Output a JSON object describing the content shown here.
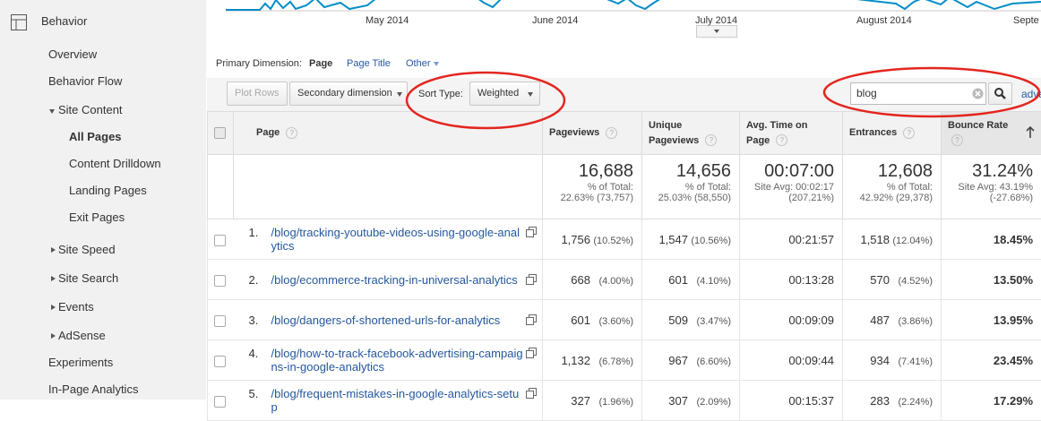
{
  "nav": {
    "section": "Behavior",
    "items": [
      "Overview",
      "Behavior Flow",
      "Site Content",
      "All Pages",
      "Content Drilldown",
      "Landing Pages",
      "Exit Pages",
      "Site Speed",
      "Site Search",
      "Events",
      "AdSense",
      "Experiments",
      "In-Page Analytics"
    ]
  },
  "timeline": {
    "labels": [
      "May 2014",
      "June 2014",
      "July 2014",
      "August 2014",
      "Septe"
    ]
  },
  "dimension": {
    "label": "Primary Dimension:",
    "options": [
      "Page",
      "Page Title",
      "Other"
    ]
  },
  "toolbar": {
    "plot_rows": "Plot Rows",
    "secondary": "Secondary dimension",
    "sort_label": "Sort Type:",
    "sort_value": "Weighted",
    "search": "blog",
    "advanced": "adva"
  },
  "table": {
    "columns": [
      "Page",
      "Pageviews",
      "Unique Pageviews",
      "Avg. Time on Page",
      "Entrances",
      "Bounce Rate"
    ],
    "help": "?",
    "totals": [
      {
        "main": "16,688",
        "line1": "% of Total:",
        "line2": "22.63% (73,757)"
      },
      {
        "main": "14,656",
        "line1": "% of Total:",
        "line2": "25.03% (58,550)"
      },
      {
        "main": "00:07:00",
        "line1": "Site Avg: 00:02:17",
        "line2": "(207.21%)"
      },
      {
        "main": "12,608",
        "line1": "% of Total:",
        "line2": "42.92% (29,378)"
      },
      {
        "main": "31.24%",
        "line1": "Site Avg: 43.19%",
        "line2": "(-27.68%)"
      }
    ],
    "rows": [
      {
        "index": "1.",
        "page": "/blog/tracking-youtube-videos-using-google-analytics",
        "cells": [
          [
            "1,756",
            "(10.52%)"
          ],
          [
            "1,547",
            "(10.56%)"
          ],
          [
            "00:21:57"
          ],
          [
            "1,518",
            "(12.04%)"
          ],
          [
            "18.45%"
          ]
        ]
      },
      {
        "index": "2.",
        "page": "/blog/ecommerce-tracking-in-universal-analytics",
        "cells": [
          [
            "668",
            "(4.00%)"
          ],
          [
            "601",
            "(4.10%)"
          ],
          [
            "00:13:28"
          ],
          [
            "570",
            "(4.52%)"
          ],
          [
            "13.50%"
          ]
        ]
      },
      {
        "index": "3.",
        "page": "/blog/dangers-of-shortened-urls-for-analytics",
        "cells": [
          [
            "601",
            "(3.60%)"
          ],
          [
            "509",
            "(3.47%)"
          ],
          [
            "00:09:09"
          ],
          [
            "487",
            "(3.86%)"
          ],
          [
            "13.95%"
          ]
        ]
      },
      {
        "index": "4.",
        "page": "/blog/how-to-track-facebook-advertising-campaigns-in-google-analytics",
        "cells": [
          [
            "1,132",
            "(6.78%)"
          ],
          [
            "967",
            "(6.60%)"
          ],
          [
            "00:09:44"
          ],
          [
            "934",
            "(7.41%)"
          ],
          [
            "23.45%"
          ]
        ]
      },
      {
        "index": "5.",
        "page": "/blog/frequent-mistakes-in-google-analytics-setup",
        "cells": [
          [
            "327",
            "(1.96%)"
          ],
          [
            "307",
            "(2.09%)"
          ],
          [
            "00:15:37"
          ],
          [
            "283",
            "(2.24%)"
          ],
          [
            "17.29%"
          ]
        ]
      }
    ]
  }
}
